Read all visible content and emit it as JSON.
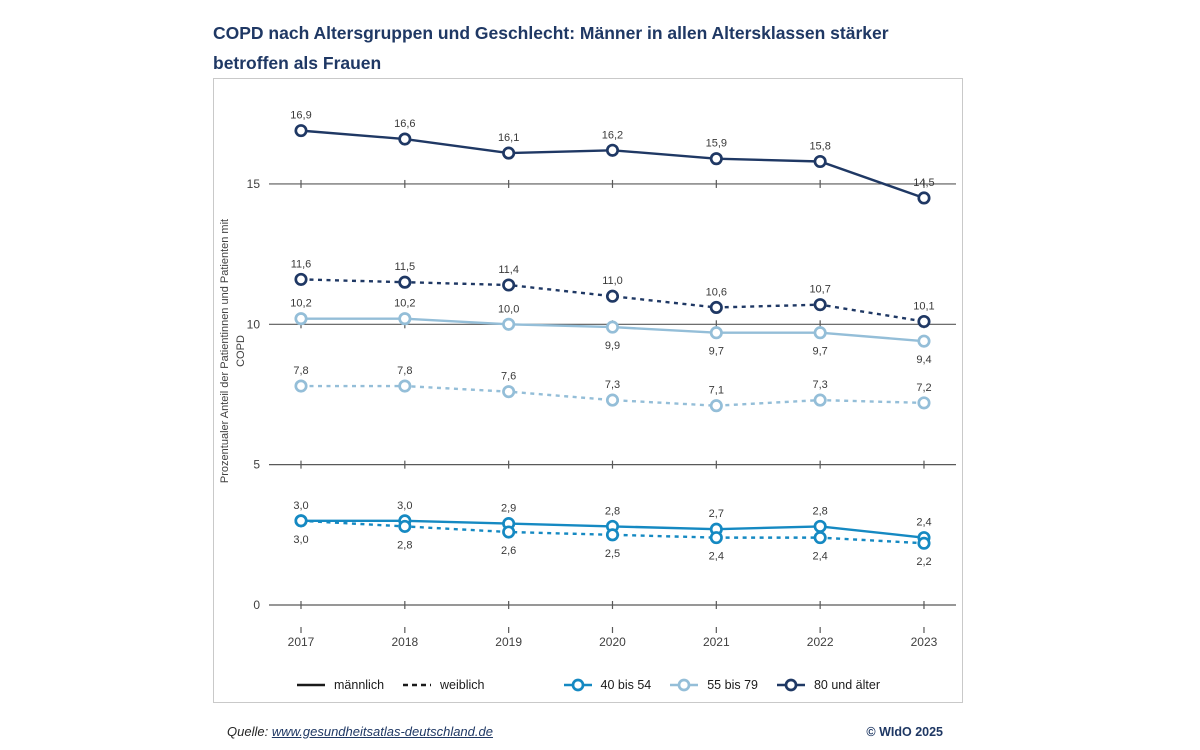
{
  "title": {
    "line1": "COPD nach Altersgruppen und Geschlecht: Männer in allen Altersklassen stärker",
    "line2": "betroffen als Frauen"
  },
  "chart_data": {
    "type": "line",
    "x": [
      "2017",
      "2018",
      "2019",
      "2020",
      "2021",
      "2022",
      "2023"
    ],
    "ylabel_line1": "Prozentualer Anteil der Patientinnen und Patienten mit",
    "ylabel_line2": "COPD",
    "yticks": [
      0,
      5,
      10,
      15
    ],
    "ylim": [
      0,
      18.7
    ],
    "grid": true,
    "legend_position": "bottom",
    "series": [
      {
        "name": "80 und älter – männlich",
        "age_group": "80 und älter",
        "gender": "männlich",
        "style": "solid",
        "color": "#1f3864",
        "values": [
          16.9,
          16.6,
          16.1,
          16.2,
          15.9,
          15.8,
          14.5
        ],
        "labels": [
          "16,9",
          "16,6",
          "16,1",
          "16,2",
          "15,9",
          "15,8",
          "14,5"
        ],
        "label_side": [
          "above",
          "above",
          "above",
          "above",
          "above",
          "above",
          "above"
        ]
      },
      {
        "name": "80 und älter – weiblich",
        "age_group": "80 und älter",
        "gender": "weiblich",
        "style": "dashed",
        "color": "#1f3864",
        "values": [
          11.6,
          11.5,
          11.4,
          11.0,
          10.6,
          10.7,
          10.1
        ],
        "labels": [
          "11,6",
          "11,5",
          "11,4",
          "11,0",
          "10,6",
          "10,7",
          "10,1"
        ],
        "label_side": [
          "above",
          "above",
          "above",
          "above",
          "above",
          "above",
          "above"
        ]
      },
      {
        "name": "55 bis 79 – männlich",
        "age_group": "55 bis 79",
        "gender": "männlich",
        "style": "solid",
        "color": "#94bed8",
        "values": [
          10.2,
          10.2,
          10.0,
          9.9,
          9.7,
          9.7,
          9.4
        ],
        "labels": [
          "10,2",
          "10,2",
          "10,0",
          "9,9",
          "9,7",
          "9,7",
          "9,4"
        ],
        "label_side": [
          "above",
          "above",
          "above",
          "below",
          "below",
          "below",
          "below"
        ]
      },
      {
        "name": "55 bis 79 – weiblich",
        "age_group": "55 bis 79",
        "gender": "weiblich",
        "style": "dashed",
        "color": "#94bed8",
        "values": [
          7.8,
          7.8,
          7.6,
          7.3,
          7.1,
          7.3,
          7.2
        ],
        "labels": [
          "7,8",
          "7,8",
          "7,6",
          "7,3",
          "7,1",
          "7,3",
          "7,2"
        ],
        "label_side": [
          "above",
          "above",
          "above",
          "above",
          "above",
          "above",
          "above"
        ]
      },
      {
        "name": "40 bis 54 – männlich",
        "age_group": "40 bis 54",
        "gender": "männlich",
        "style": "solid",
        "color": "#1589c2",
        "values": [
          3.0,
          3.0,
          2.9,
          2.8,
          2.7,
          2.8,
          2.4
        ],
        "labels": [
          "3,0",
          "3,0",
          "2,9",
          "2,8",
          "2,7",
          "2,8",
          "2,4"
        ],
        "label_side": [
          "above",
          "above",
          "above",
          "above",
          "above",
          "above",
          "above"
        ]
      },
      {
        "name": "40 bis 54 – weiblich",
        "age_group": "40 bis 54",
        "gender": "weiblich",
        "style": "dashed",
        "color": "#1589c2",
        "values": [
          3.0,
          2.8,
          2.6,
          2.5,
          2.4,
          2.4,
          2.2
        ],
        "labels": [
          "3,0",
          "2,8",
          "2,6",
          "2,5",
          "2,4",
          "2,4",
          "2,2"
        ],
        "label_side": [
          "below",
          "below",
          "below",
          "below",
          "below",
          "below",
          "below"
        ]
      }
    ]
  },
  "legend": {
    "gender_items": [
      {
        "label": "männlich",
        "style": "solid"
      },
      {
        "label": "weiblich",
        "style": "dashed"
      }
    ],
    "age_items": [
      {
        "label": "40 bis 54",
        "color": "#1589c2"
      },
      {
        "label": "55 bis 79",
        "color": "#94bed8"
      },
      {
        "label": "80 und älter",
        "color": "#1f3864"
      }
    ]
  },
  "footer": {
    "source_label": "Quelle:",
    "source_link": "www.gesundheitsatlas-deutschland.de",
    "copyright": "© WIdO 2025"
  },
  "colors": {
    "navy": "#1f3864",
    "light_blue": "#94bed8",
    "azure": "#1589c2",
    "grid": "#595959",
    "axis_text": "#404040",
    "label_text": "#3a3a3a"
  }
}
